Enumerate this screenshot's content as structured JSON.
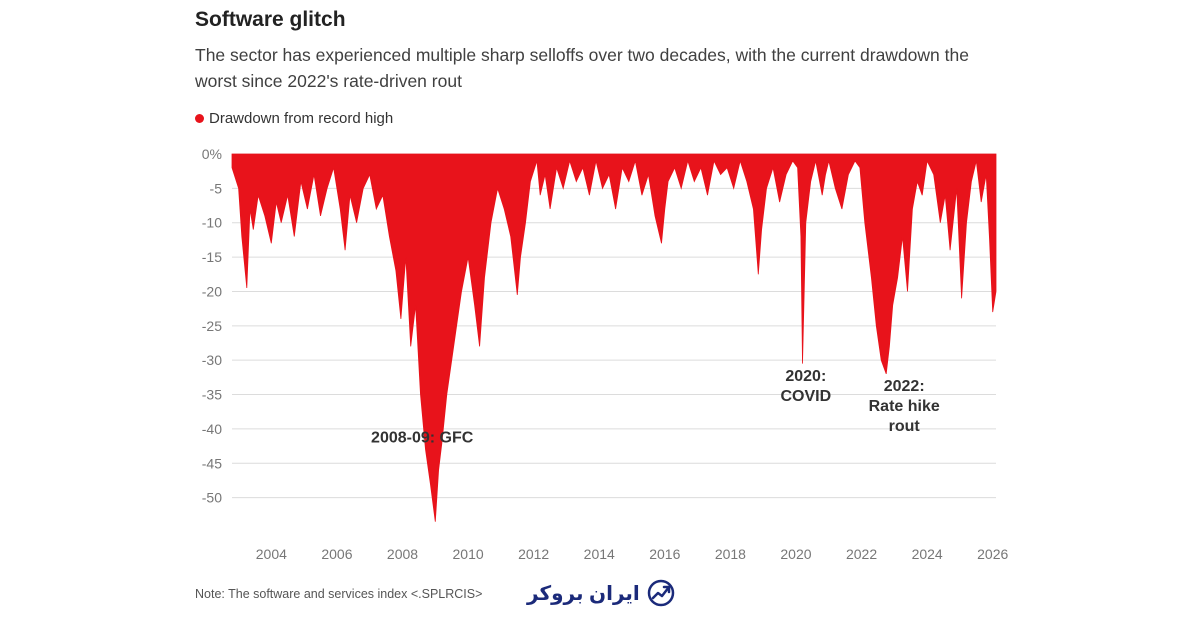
{
  "title": "Software glitch",
  "subtitle": "The sector has experienced multiple sharp selloffs over two decades, with the current drawdown the worst since 2022's rate-driven rout",
  "note": "Note: The software and services index <.SPLRCIS>",
  "logo": {
    "text": "ایران بروکر",
    "icon": "trend-chart-icon",
    "color": "#1b2a7a"
  },
  "chart_data": {
    "type": "area",
    "title": "Software glitch",
    "legend": [
      {
        "name": "Drawdown from record high",
        "color": "#e8131b"
      }
    ],
    "legend_position": "top-left",
    "xlabel": "",
    "ylabel": "",
    "ylim": [
      -55,
      0
    ],
    "xlim": [
      2002.8,
      2026.1
    ],
    "grid": true,
    "y_ticks": [
      0,
      -5,
      -10,
      -15,
      -20,
      -25,
      -30,
      -35,
      -40,
      -45,
      -50
    ],
    "y_tick_labels": [
      "0%",
      "-5",
      "-10",
      "-15",
      "-20",
      "-25",
      "-30",
      "-35",
      "-40",
      "-45",
      "-50"
    ],
    "x_ticks": [
      2004,
      2006,
      2008,
      2010,
      2012,
      2014,
      2016,
      2018,
      2020,
      2022,
      2024,
      2026
    ],
    "x_tick_labels": [
      "2004",
      "2006",
      "2008",
      "2010",
      "2012",
      "2014",
      "2016",
      "2018",
      "2020",
      "2022",
      "2024",
      "2026"
    ],
    "series": [
      {
        "name": "Drawdown from record high",
        "color": "#e8131b",
        "x": [
          2002.8,
          2003.0,
          2003.1,
          2003.25,
          2003.35,
          2003.45,
          2003.6,
          2003.8,
          2004.0,
          2004.15,
          2004.3,
          2004.5,
          2004.7,
          2004.9,
          2005.1,
          2005.3,
          2005.5,
          2005.7,
          2005.9,
          2006.1,
          2006.25,
          2006.4,
          2006.6,
          2006.8,
          2007.0,
          2007.2,
          2007.4,
          2007.6,
          2007.8,
          2007.95,
          2008.1,
          2008.25,
          2008.4,
          2008.55,
          2008.7,
          2008.85,
          2009.0,
          2009.1,
          2009.2,
          2009.35,
          2009.5,
          2009.65,
          2009.8,
          2010.0,
          2010.2,
          2010.35,
          2010.5,
          2010.7,
          2010.9,
          2011.1,
          2011.3,
          2011.5,
          2011.6,
          2011.75,
          2011.9,
          2012.1,
          2012.2,
          2012.35,
          2012.5,
          2012.7,
          2012.9,
          2013.1,
          2013.3,
          2013.5,
          2013.7,
          2013.9,
          2014.1,
          2014.3,
          2014.5,
          2014.7,
          2014.9,
          2015.1,
          2015.3,
          2015.5,
          2015.7,
          2015.9,
          2016.0,
          2016.1,
          2016.3,
          2016.5,
          2016.7,
          2016.9,
          2017.1,
          2017.3,
          2017.5,
          2017.7,
          2017.9,
          2018.1,
          2018.3,
          2018.5,
          2018.7,
          2018.85,
          2018.95,
          2019.1,
          2019.3,
          2019.5,
          2019.7,
          2019.9,
          2020.05,
          2020.15,
          2020.2,
          2020.3,
          2020.45,
          2020.6,
          2020.8,
          2020.9,
          2021.0,
          2021.2,
          2021.4,
          2021.6,
          2021.8,
          2021.95,
          2022.1,
          2022.3,
          2022.45,
          2022.6,
          2022.75,
          2022.85,
          2022.95,
          2023.1,
          2023.25,
          2023.4,
          2023.55,
          2023.7,
          2023.85,
          2024.0,
          2024.2,
          2024.4,
          2024.55,
          2024.7,
          2024.9,
          2025.05,
          2025.2,
          2025.35,
          2025.5,
          2025.65,
          2025.8,
          2025.9,
          2026.0,
          2026.1
        ],
        "values": [
          -2,
          -5,
          -12,
          -19.5,
          -8,
          -11,
          -6,
          -9,
          -13,
          -7,
          -10,
          -6,
          -12,
          -4,
          -8,
          -3,
          -9,
          -5,
          -2,
          -8,
          -14,
          -6,
          -10,
          -5,
          -3,
          -8,
          -6,
          -12,
          -17,
          -24,
          -15,
          -28,
          -22,
          -35,
          -43,
          -48,
          -53.5,
          -46,
          -42,
          -35,
          -30,
          -25,
          -20,
          -15,
          -22,
          -28,
          -18,
          -10,
          -5,
          -8,
          -12,
          -20.5,
          -15,
          -10,
          -4,
          -1,
          -6,
          -3,
          -8,
          -2,
          -5,
          -1,
          -4,
          -2,
          -6,
          -1,
          -5,
          -3,
          -8,
          -2,
          -4,
          -1,
          -6,
          -3,
          -9,
          -13,
          -8,
          -4,
          -2,
          -5,
          -1,
          -4,
          -2,
          -6,
          -1,
          -3,
          -2,
          -5,
          -1,
          -4,
          -8,
          -17.5,
          -11,
          -5,
          -2,
          -7,
          -3,
          -1,
          -2,
          -12,
          -30.5,
          -10,
          -4,
          -1,
          -6,
          -3,
          -1,
          -5,
          -8,
          -3,
          -1,
          -2,
          -10,
          -18,
          -25,
          -30,
          -32,
          -28,
          -22,
          -18,
          -12,
          -20,
          -8,
          -4,
          -6,
          -1,
          -3,
          -10,
          -6,
          -14,
          -5,
          -21,
          -10,
          -4,
          -1,
          -7,
          -3,
          -12,
          -23,
          -20
        ]
      }
    ],
    "annotations": [
      {
        "lines": [
          "2008-09: GFC"
        ],
        "x": 2008.6,
        "y": -42
      },
      {
        "lines": [
          "2020:",
          "COVID"
        ],
        "x": 2020.3,
        "y": -33
      },
      {
        "lines": [
          "2022:",
          "Rate hike",
          "rout"
        ],
        "x": 2023.3,
        "y": -34.5
      }
    ]
  }
}
